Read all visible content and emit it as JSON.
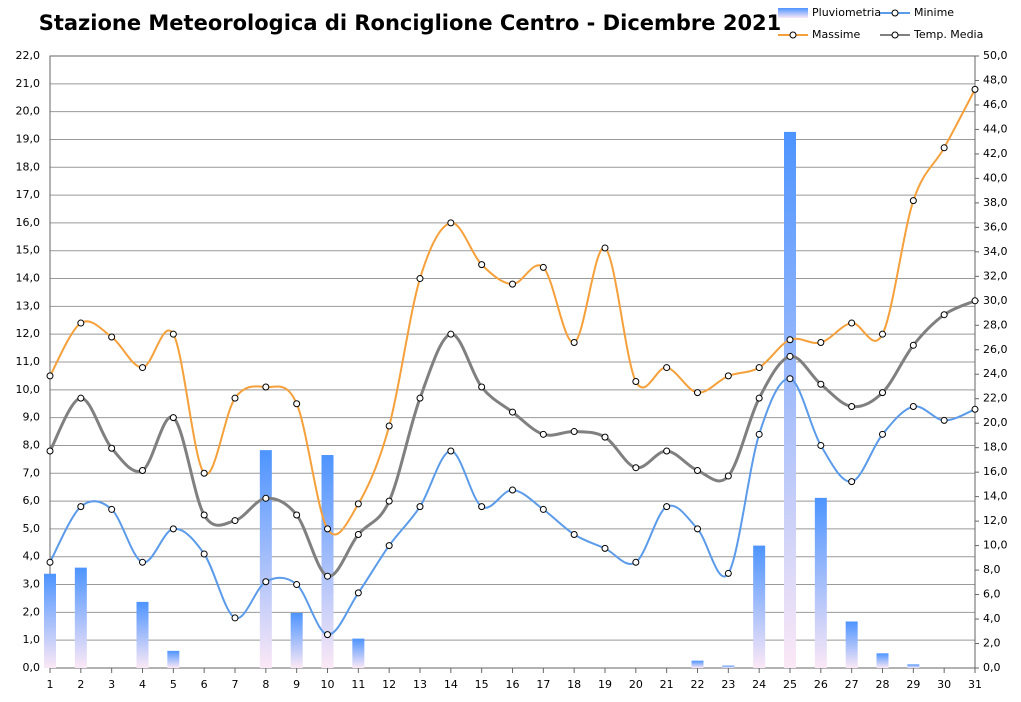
{
  "chart_data": {
    "type": "combo",
    "title": "Stazione Meteorologica di Ronciglione Centro - Dicembre 2021",
    "categories": [
      "1",
      "2",
      "3",
      "4",
      "5",
      "6",
      "7",
      "8",
      "9",
      "10",
      "11",
      "12",
      "13",
      "14",
      "15",
      "16",
      "17",
      "18",
      "19",
      "20",
      "21",
      "22",
      "23",
      "24",
      "25",
      "26",
      "27",
      "28",
      "29",
      "30",
      "31"
    ],
    "ylim": [
      0,
      22
    ],
    "y2lim": [
      0,
      50
    ],
    "grid": true,
    "legend": "top-right",
    "yticks": [
      {
        "value": 0,
        "label": "0,0"
      },
      {
        "value": 1,
        "label": "1,0"
      },
      {
        "value": 2,
        "label": "2,0"
      },
      {
        "value": 3,
        "label": "3,0"
      },
      {
        "value": 4,
        "label": "4,0"
      },
      {
        "value": 5,
        "label": "5,0"
      },
      {
        "value": 6,
        "label": "6,0"
      },
      {
        "value": 7,
        "label": "7,0"
      },
      {
        "value": 8,
        "label": "8,0"
      },
      {
        "value": 9,
        "label": "9,0"
      },
      {
        "value": 10,
        "label": "10,0"
      },
      {
        "value": 11,
        "label": "11,0"
      },
      {
        "value": 12,
        "label": "12,0"
      },
      {
        "value": 13,
        "label": "13,0"
      },
      {
        "value": 14,
        "label": "14,0"
      },
      {
        "value": 15,
        "label": "15,0"
      },
      {
        "value": 16,
        "label": "16,0"
      },
      {
        "value": 17,
        "label": "17,0"
      },
      {
        "value": 18,
        "label": "18,0"
      },
      {
        "value": 19,
        "label": "19,0"
      },
      {
        "value": 20,
        "label": "20,0"
      },
      {
        "value": 21,
        "label": "21,0"
      },
      {
        "value": 22,
        "label": "22,0"
      }
    ],
    "y2ticks": [
      {
        "value": 0,
        "label": "0,0"
      },
      {
        "value": 2,
        "label": "2,0"
      },
      {
        "value": 4,
        "label": "4,0"
      },
      {
        "value": 6,
        "label": "6,0"
      },
      {
        "value": 8,
        "label": "8,0"
      },
      {
        "value": 10,
        "label": "10,0"
      },
      {
        "value": 12,
        "label": "12,0"
      },
      {
        "value": 14,
        "label": "14,0"
      },
      {
        "value": 16,
        "label": "16,0"
      },
      {
        "value": 18,
        "label": "18,0"
      },
      {
        "value": 20,
        "label": "20,0"
      },
      {
        "value": 22,
        "label": "22,0"
      },
      {
        "value": 24,
        "label": "24,0"
      },
      {
        "value": 26,
        "label": "26,0"
      },
      {
        "value": 28,
        "label": "28,0"
      },
      {
        "value": 30,
        "label": "30,0"
      },
      {
        "value": 32,
        "label": "32,0"
      },
      {
        "value": 34,
        "label": "34,0"
      },
      {
        "value": 36,
        "label": "36,0"
      },
      {
        "value": 38,
        "label": "38,0"
      },
      {
        "value": 40,
        "label": "40,0"
      },
      {
        "value": 42,
        "label": "42,0"
      },
      {
        "value": 44,
        "label": "44,0"
      },
      {
        "value": 46,
        "label": "46,0"
      },
      {
        "value": 48,
        "label": "48,0"
      },
      {
        "value": 50,
        "label": "50,0"
      }
    ],
    "series": [
      {
        "name": "Pluviometria",
        "type": "bar",
        "axis": "y2",
        "color": "#4d94ff",
        "values": [
          7.7,
          8.2,
          0,
          5.4,
          1.4,
          0,
          0,
          17.8,
          4.5,
          17.4,
          2.4,
          0,
          0,
          0,
          0,
          0,
          0,
          0,
          0,
          0,
          0,
          0.6,
          0.2,
          10.0,
          43.8,
          13.9,
          3.8,
          1.2,
          0.3,
          0,
          0
        ]
      },
      {
        "name": "Minime",
        "type": "line",
        "color": "#5b9bea",
        "values": [
          3.8,
          5.8,
          5.7,
          3.8,
          5.0,
          4.1,
          1.8,
          3.1,
          3.0,
          1.2,
          2.7,
          4.4,
          5.8,
          7.8,
          5.8,
          6.4,
          5.7,
          4.8,
          4.3,
          3.8,
          5.8,
          5.0,
          3.4,
          8.4,
          10.4,
          8.0,
          6.7,
          8.4,
          9.4,
          8.9,
          9.3
        ]
      },
      {
        "name": "Massime",
        "type": "line",
        "color": "#f5a03a",
        "values": [
          10.5,
          12.4,
          11.9,
          10.8,
          12.0,
          7.0,
          9.7,
          10.1,
          9.5,
          5.0,
          5.9,
          8.7,
          14.0,
          16.0,
          14.5,
          13.8,
          14.4,
          11.7,
          15.1,
          10.3,
          10.8,
          9.9,
          10.5,
          10.8,
          11.8,
          11.7,
          12.4,
          12.0,
          16.8,
          18.7,
          20.8
        ]
      },
      {
        "name": "Temp. Media",
        "type": "line",
        "color": "#808080",
        "values": [
          7.8,
          9.7,
          7.9,
          7.1,
          9.0,
          5.5,
          5.3,
          6.1,
          5.5,
          3.3,
          4.8,
          6.0,
          9.7,
          12.0,
          10.1,
          9.2,
          8.4,
          8.5,
          8.3,
          7.2,
          7.8,
          7.1,
          6.9,
          9.7,
          11.2,
          10.2,
          9.4,
          9.9,
          11.6,
          12.7,
          13.2
        ]
      }
    ]
  }
}
